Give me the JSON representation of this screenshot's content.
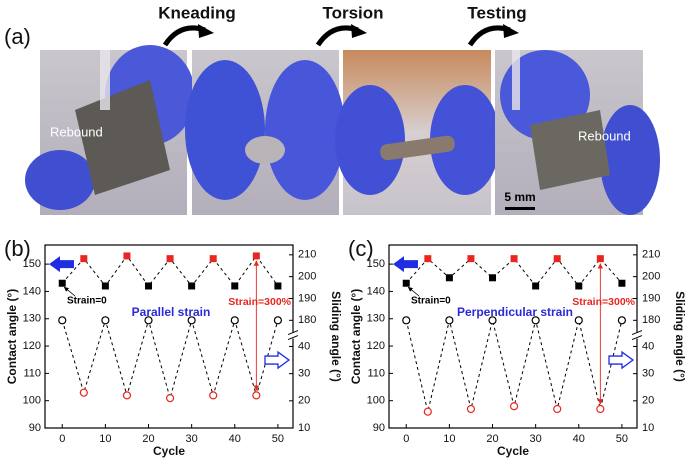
{
  "panel_a": {
    "label": "(a)",
    "steps": [
      "Kneading",
      "Torsion",
      "Testing"
    ],
    "photo_labels": [
      "Rebound",
      "Rebound"
    ],
    "scale_bar": "5 mm"
  },
  "chart_data": [
    {
      "type": "line",
      "label": "(b)",
      "xlabel": "Cycle",
      "ylabel": "Contact angle (°)",
      "y2label": "Sliding angle (°)",
      "annotations": [
        "Strain=0",
        "Parallel strain",
        "Strain=300%"
      ],
      "x": [
        0,
        5,
        10,
        15,
        20,
        25,
        30,
        35,
        40,
        45,
        50
      ],
      "xlim": [
        -4,
        53.5
      ],
      "xticks": [
        0,
        10,
        20,
        30,
        40,
        50
      ],
      "ylim": [
        90,
        157
      ],
      "yticks": [
        90,
        100,
        110,
        120,
        130,
        140,
        150
      ],
      "y2lim": [
        [
          10,
          44
        ],
        [
          173,
          214.5
        ]
      ],
      "y2ticks": [
        10,
        20,
        30,
        40,
        180,
        190,
        200,
        210
      ],
      "series": [
        {
          "marker": "square",
          "colors": [
            "#000000",
            "#e8251e",
            "#000000",
            "#e8251e",
            "#000000",
            "#e8251e",
            "#000000",
            "#e8251e",
            "#000000",
            "#e8251e",
            "#000000"
          ],
          "values": [
            143,
            152,
            142,
            153,
            142,
            152,
            142,
            152,
            142,
            153,
            142
          ]
        },
        {
          "marker": "circle",
          "axis": "y2",
          "colors": [
            "#000000",
            "#e8251e",
            "#000000",
            "#e8251e",
            "#000000",
            "#e8251e",
            "#000000",
            "#e8251e",
            "#000000",
            "#e8251e",
            "#000000"
          ],
          "values": [
            180,
            23,
            180,
            22,
            180,
            21,
            180,
            22,
            180,
            22,
            180
          ]
        }
      ]
    },
    {
      "type": "line",
      "label": "(c)",
      "xlabel": "Cycle",
      "ylabel": "Contact angle (°)",
      "y2label": "Sliding angle (°)",
      "annotations": [
        "Strain=0",
        "Perpendicular strain",
        "Strain=300%"
      ],
      "x": [
        0,
        5,
        10,
        15,
        20,
        25,
        30,
        35,
        40,
        45,
        50
      ],
      "xlim": [
        -4,
        53.5
      ],
      "xticks": [
        0,
        10,
        20,
        30,
        40,
        50
      ],
      "ylim": [
        90,
        157
      ],
      "yticks": [
        90,
        100,
        110,
        120,
        130,
        140,
        150
      ],
      "y2lim": [
        [
          10,
          44
        ],
        [
          173,
          214.5
        ]
      ],
      "y2ticks": [
        10,
        20,
        30,
        40,
        180,
        190,
        200,
        210
      ],
      "series": [
        {
          "marker": "square",
          "colors": [
            "#000000",
            "#e8251e",
            "#000000",
            "#e8251e",
            "#000000",
            "#e8251e",
            "#000000",
            "#e8251e",
            "#000000",
            "#e8251e",
            "#000000"
          ],
          "values": [
            143,
            152,
            145,
            152,
            145,
            152,
            142,
            152,
            142,
            152,
            143
          ]
        },
        {
          "marker": "circle",
          "axis": "y2",
          "colors": [
            "#000000",
            "#e8251e",
            "#000000",
            "#e8251e",
            "#000000",
            "#e8251e",
            "#000000",
            "#e8251e",
            "#000000",
            "#e8251e",
            "#000000"
          ],
          "values": [
            180,
            16,
            180,
            17,
            180,
            18,
            180,
            17,
            180,
            17,
            180
          ]
        }
      ]
    }
  ]
}
